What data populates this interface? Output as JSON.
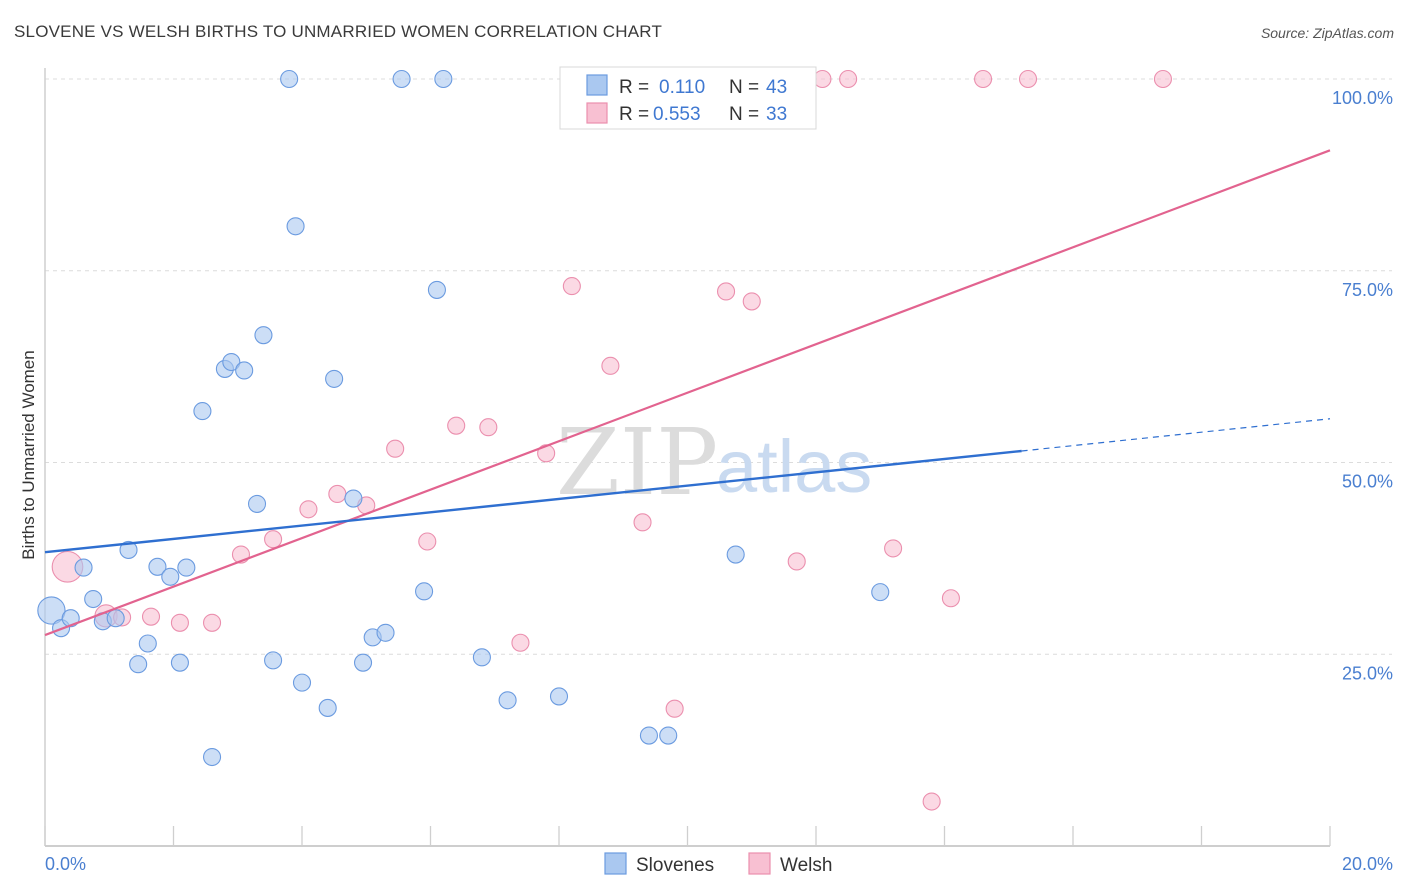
{
  "header": {
    "title": "SLOVENE VS WELSH BIRTHS TO UNMARRIED WOMEN CORRELATION CHART",
    "source": "Source: ZipAtlas.com"
  },
  "watermark": {
    "zip": "ZIP",
    "atlas": "atlas"
  },
  "legend": {
    "r_label": "R =",
    "n_label": "N =",
    "rows": [
      {
        "r": "0.110",
        "n": "43"
      },
      {
        "r": "0.553",
        "n": "33"
      }
    ]
  },
  "chart_data": {
    "type": "scatter",
    "title": "SLOVENE VS WELSH BIRTHS TO UNMARRIED WOMEN CORRELATION CHART",
    "xlabel": "",
    "ylabel": "Births to Unmarried Women",
    "xlim": [
      0,
      20
    ],
    "ylim": [
      0,
      102
    ],
    "x_tick_labels": [
      "0.0%",
      "20.0%"
    ],
    "y_ticks": [
      25,
      50,
      75,
      100
    ],
    "y_tick_labels": [
      "25.0%",
      "50.0%",
      "75.0%",
      "100.0%"
    ],
    "grid": true,
    "legend_position": "top-center",
    "colors": {
      "slovenes_fill": "#aac8f0",
      "slovenes_stroke": "#6b9be0",
      "slovenes_line": "#2f6fd0",
      "welsh_fill": "#f8c0d2",
      "welsh_stroke": "#eb8fae",
      "welsh_line": "#e2638f"
    },
    "series": [
      {
        "name": "Slovenes",
        "r": 0.11,
        "n": 43,
        "trend": {
          "x": [
            0.0,
            15.2
          ],
          "y": [
            38.3,
            51.5
          ],
          "dashed_to": [
            20.0,
            55.7
          ]
        },
        "points": [
          [
            0.1,
            30.7,
            1.6
          ],
          [
            0.25,
            28.4,
            1
          ],
          [
            0.4,
            29.7,
            1
          ],
          [
            0.6,
            36.3,
            1
          ],
          [
            0.75,
            32.2,
            1
          ],
          [
            0.9,
            29.3,
            1
          ],
          [
            1.1,
            29.7,
            1
          ],
          [
            1.3,
            38.6,
            1
          ],
          [
            1.45,
            23.7,
            1
          ],
          [
            1.6,
            26.4,
            1
          ],
          [
            1.75,
            36.4,
            1
          ],
          [
            1.95,
            35.1,
            1
          ],
          [
            2.1,
            23.9,
            1
          ],
          [
            2.2,
            36.3,
            1
          ],
          [
            2.45,
            56.7,
            1
          ],
          [
            2.6,
            11.6,
            1
          ],
          [
            2.8,
            62.2,
            1
          ],
          [
            2.9,
            63.1,
            1
          ],
          [
            3.1,
            62.0,
            1
          ],
          [
            3.3,
            44.6,
            1
          ],
          [
            3.4,
            66.6,
            1
          ],
          [
            3.55,
            24.2,
            1
          ],
          [
            3.8,
            100.0,
            1
          ],
          [
            3.9,
            80.8,
            1
          ],
          [
            4.0,
            21.3,
            1
          ],
          [
            4.4,
            18.0,
            1
          ],
          [
            4.5,
            60.9,
            1
          ],
          [
            4.8,
            45.3,
            1
          ],
          [
            4.95,
            23.9,
            1
          ],
          [
            5.1,
            27.2,
            1
          ],
          [
            5.3,
            27.8,
            1
          ],
          [
            5.55,
            100.0,
            1
          ],
          [
            5.9,
            33.2,
            1
          ],
          [
            6.1,
            72.5,
            1
          ],
          [
            6.2,
            100.0,
            1
          ],
          [
            6.8,
            24.6,
            1
          ],
          [
            7.2,
            19.0,
            1
          ],
          [
            8.0,
            19.5,
            1
          ],
          [
            9.4,
            14.4,
            1
          ],
          [
            9.7,
            14.4,
            1
          ],
          [
            10.75,
            38.0,
            1
          ],
          [
            11.2,
            100.0,
            1
          ],
          [
            13.0,
            33.1,
            1
          ]
        ]
      },
      {
        "name": "Welsh",
        "r": 0.553,
        "n": 33,
        "trend": {
          "x": [
            0.0,
            20.0
          ],
          "y": [
            27.5,
            90.7
          ]
        },
        "points": [
          [
            0.35,
            36.4,
            1.8
          ],
          [
            0.95,
            30.0,
            1.3
          ],
          [
            1.2,
            29.8,
            1
          ],
          [
            1.65,
            29.9,
            1
          ],
          [
            2.1,
            29.1,
            1
          ],
          [
            2.6,
            29.1,
            1
          ],
          [
            3.05,
            38.0,
            1
          ],
          [
            3.55,
            40.0,
            1
          ],
          [
            4.1,
            43.9,
            1
          ],
          [
            4.55,
            45.9,
            1
          ],
          [
            5.0,
            44.4,
            1
          ],
          [
            5.45,
            51.8,
            1
          ],
          [
            5.95,
            39.7,
            1
          ],
          [
            6.4,
            54.8,
            1
          ],
          [
            6.9,
            54.6,
            1
          ],
          [
            7.4,
            26.5,
            1
          ],
          [
            7.8,
            51.2,
            1
          ],
          [
            8.2,
            73.0,
            1
          ],
          [
            8.8,
            62.6,
            1
          ],
          [
            9.3,
            42.2,
            1
          ],
          [
            9.8,
            17.9,
            1
          ],
          [
            10.3,
            100.0,
            1
          ],
          [
            10.6,
            72.3,
            1
          ],
          [
            11.0,
            71.0,
            1
          ],
          [
            11.7,
            37.1,
            1
          ],
          [
            12.1,
            100.0,
            1
          ],
          [
            12.5,
            100.0,
            1
          ],
          [
            13.2,
            38.8,
            1
          ],
          [
            13.8,
            5.8,
            1
          ],
          [
            14.1,
            32.3,
            1
          ],
          [
            14.6,
            100.0,
            1
          ],
          [
            15.3,
            100.0,
            1
          ],
          [
            17.4,
            100.0,
            1
          ]
        ]
      }
    ]
  }
}
